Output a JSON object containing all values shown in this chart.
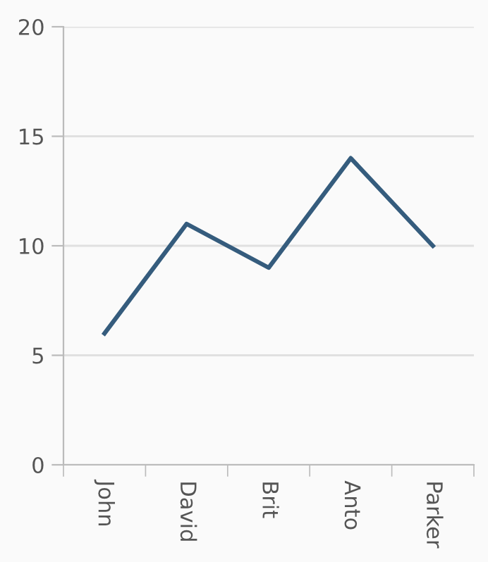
{
  "chart_data": {
    "type": "line",
    "categories": [
      "John",
      "David",
      "Brit",
      "Anto",
      "Parker"
    ],
    "series": [
      {
        "color": "#355c7d",
        "values": [
          6,
          11,
          9,
          14,
          10
        ]
      }
    ],
    "ylim": [
      0,
      20
    ],
    "yticks": [
      0,
      5,
      10,
      15,
      20
    ],
    "grid": "y",
    "line_style": "solid"
  }
}
